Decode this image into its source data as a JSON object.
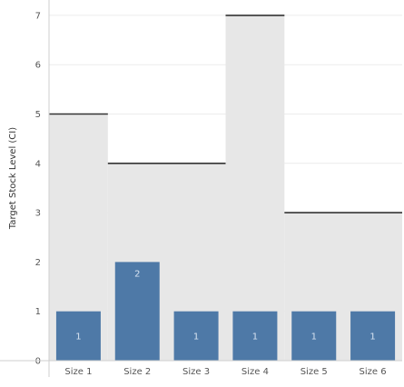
{
  "chart_data": {
    "type": "bar",
    "categories": [
      "Size 1",
      "Size 2",
      "Size 3",
      "Size 4",
      "Size 5",
      "Size 6"
    ],
    "values": [
      1,
      2,
      1,
      1,
      1,
      1
    ],
    "data_labels": [
      "1",
      "2",
      "1",
      "1",
      "1",
      "1"
    ],
    "target_stock": [
      {
        "from": 0,
        "to": 0,
        "value": 5
      },
      {
        "from": 1,
        "to": 2,
        "value": 4
      },
      {
        "from": 3,
        "to": 3,
        "value": 7
      },
      {
        "from": 4,
        "to": 5,
        "value": 3
      }
    ],
    "ylabel": "Target Stock Level (CI)",
    "yticks": [
      0,
      1,
      2,
      3,
      4,
      5,
      6,
      7
    ],
    "ylim": [
      0,
      7.2
    ],
    "grid": true,
    "colors": {
      "bar": "#4e79a7",
      "target_area": "#e7e7e7",
      "target_line": "#333333",
      "grid": "#ececec",
      "axis": "#cfcfcf",
      "tick_text": "#555555",
      "bar_label": "#d7e3f1"
    }
  }
}
